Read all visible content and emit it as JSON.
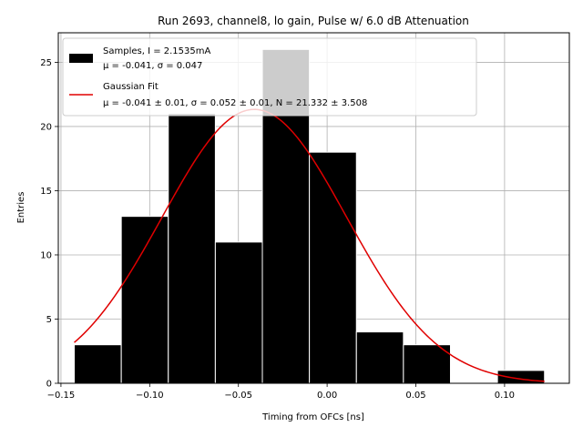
{
  "chart_data": {
    "type": "bar",
    "title": "Run 2693, channel8, lo gain, Pulse w/ 6.0 dB Attenuation",
    "xlabel": "Timing from OFCs [ns]",
    "ylabel": "Entries",
    "xlim": [
      -0.1515,
      0.1365
    ],
    "ylim": [
      0,
      27.3
    ],
    "xticks": [
      -0.15,
      -0.1,
      -0.05,
      0.0,
      0.05,
      0.1
    ],
    "xtick_labels": [
      "−0.15",
      "−0.10",
      "−0.05",
      "0.00",
      "0.05",
      "0.10"
    ],
    "yticks": [
      0,
      5,
      10,
      15,
      20,
      25
    ],
    "ytick_labels": [
      "0",
      "5",
      "10",
      "15",
      "20",
      "25"
    ],
    "grid": true,
    "legend_position": "top-left",
    "histogram": {
      "name": "Samples, I = 2.1535mA",
      "stats": "μ = -0.041, σ = 0.047",
      "color": "#000000",
      "edgecolor": "#ffffff",
      "bins": [
        {
          "x0": -0.1425,
          "x1": -0.116,
          "count": 3
        },
        {
          "x0": -0.116,
          "x1": -0.0895,
          "count": 13
        },
        {
          "x0": -0.0895,
          "x1": -0.063,
          "count": 21
        },
        {
          "x0": -0.063,
          "x1": -0.0365,
          "count": 11
        },
        {
          "x0": -0.0365,
          "x1": -0.01,
          "count": 26
        },
        {
          "x0": -0.01,
          "x1": 0.0165,
          "count": 18
        },
        {
          "x0": 0.0165,
          "x1": 0.043,
          "count": 4
        },
        {
          "x0": 0.043,
          "x1": 0.0695,
          "count": 3
        },
        {
          "x0": 0.0695,
          "x1": 0.096,
          "count": 0
        },
        {
          "x0": 0.096,
          "x1": 0.1225,
          "count": 1
        }
      ]
    },
    "fit": {
      "name": "Gaussian Fit",
      "stats": "μ = -0.041 ± 0.01, σ = 0.052 ± 0.01, N = 21.332 ± 3.508",
      "color": "#e00000",
      "mu": -0.041,
      "sigma": 0.052,
      "N": 21.332,
      "x_range": [
        -0.1425,
        0.1225
      ]
    }
  }
}
